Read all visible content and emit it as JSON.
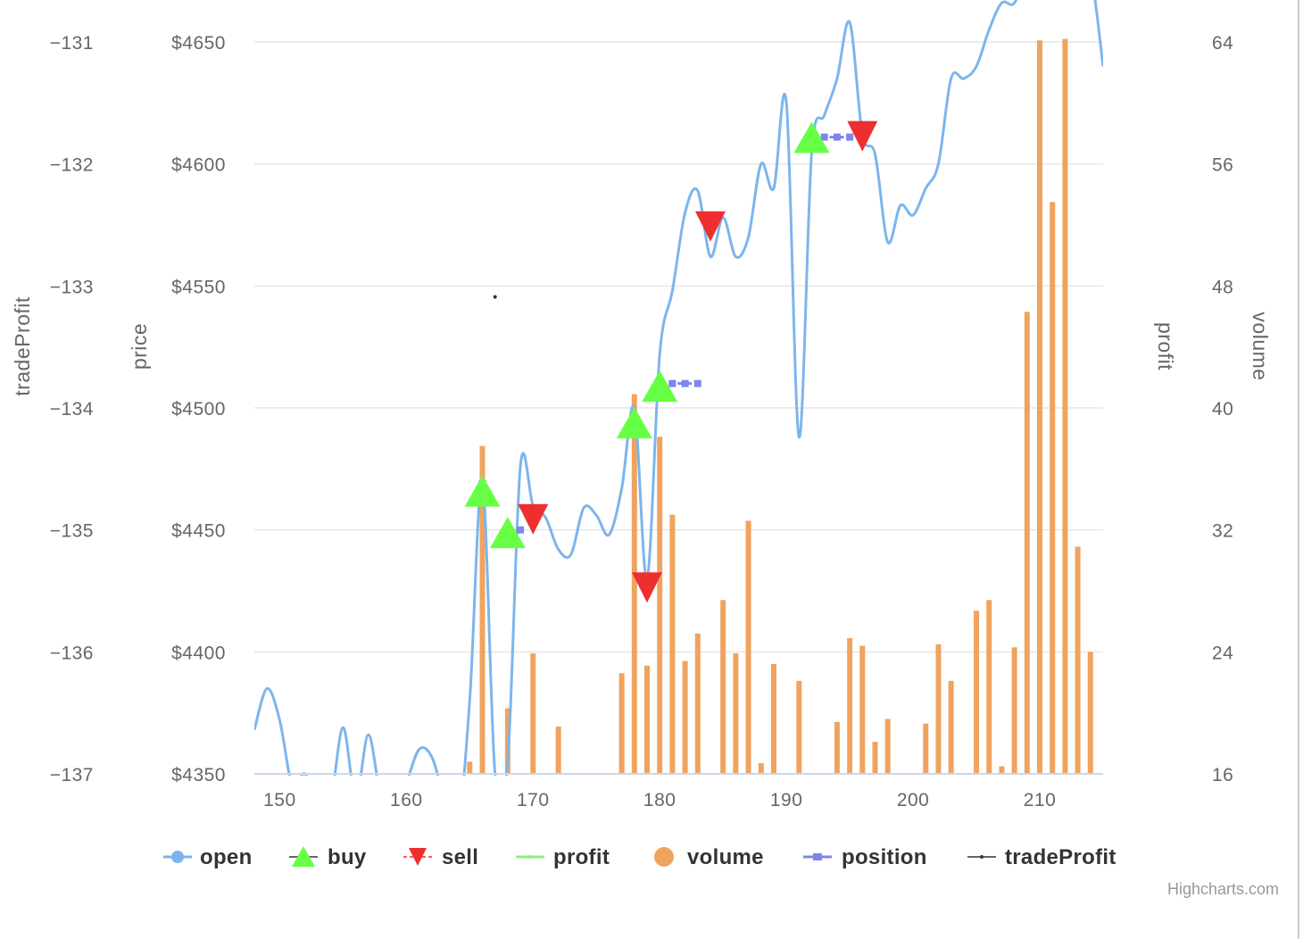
{
  "chart_data": {
    "type": "line",
    "credits": "Highcharts.com",
    "axes": {
      "tradeProfit": {
        "title": "tradeProfit",
        "ticks": [
          "−131",
          "−132",
          "−133",
          "−134",
          "−135",
          "−136",
          "−137"
        ],
        "range": [
          -137,
          -131
        ]
      },
      "price": {
        "title": "price",
        "ticks": [
          "$4650",
          "$4600",
          "$4550",
          "$4500",
          "$4450",
          "$4400",
          "$4350"
        ],
        "range": [
          4350,
          4650
        ]
      },
      "profit": {
        "title": "profit"
      },
      "volume": {
        "title": "volume",
        "ticks": [
          "64",
          "56",
          "48",
          "40",
          "32",
          "24",
          "16"
        ],
        "range": [
          16,
          64
        ]
      },
      "x": {
        "ticks": [
          "150",
          "160",
          "170",
          "180",
          "190",
          "200",
          "210"
        ],
        "range": [
          148,
          215
        ]
      }
    },
    "grid": true,
    "legend_position": "bottom",
    "legend": [
      "open",
      "buy",
      "sell",
      "profit",
      "volume",
      "position",
      "tradeProfit"
    ],
    "colors": {
      "open": "#7cb5ec",
      "buy": "#66ff44",
      "sell": "#ee2f2f",
      "profit": "#90ed7d",
      "volume": "#f0a35e",
      "position": "#8085e9",
      "tradeProfit": "#333333"
    },
    "series": [
      {
        "name": "open",
        "x": [
          148,
          149,
          150,
          151,
          152,
          153,
          154,
          155,
          156,
          157,
          158,
          159,
          160,
          161,
          162,
          163,
          164,
          165,
          166,
          167,
          168,
          169,
          170,
          171,
          172,
          173,
          174,
          175,
          176,
          177,
          178,
          179,
          180,
          181,
          182,
          183,
          184,
          185,
          186,
          187,
          188,
          189,
          190,
          191,
          192,
          193,
          194,
          195,
          196,
          197,
          198,
          199,
          200,
          201,
          202,
          203,
          204,
          205,
          206,
          207,
          208,
          209,
          210,
          211,
          212,
          213,
          214,
          215
        ],
        "values": [
          4368,
          4385,
          4372,
          4345,
          4350,
          4335,
          4338,
          4369,
          4340,
          4366,
          4340,
          4332,
          4346,
          4360,
          4357,
          4340,
          4325,
          4380,
          4470,
          4350,
          4355,
          4476,
          4460,
          4455,
          4442,
          4440,
          4459,
          4456,
          4448,
          4467,
          4500,
          4430,
          4522,
          4548,
          4580,
          4589,
          4562,
          4578,
          4562,
          4570,
          4600,
          4590,
          4625,
          4488,
          4605,
          4620,
          4635,
          4658,
          4612,
          4604,
          4568,
          4583,
          4579,
          4590,
          4600,
          4635,
          4635,
          4640,
          4655,
          4666,
          4666,
          4680,
          4700,
          4720,
          4700,
          4690,
          4680,
          4640
        ]
      },
      {
        "name": "buy",
        "x": [
          166,
          168,
          178,
          180,
          192
        ],
        "values": [
          4465,
          4448,
          4493,
          4508,
          4610
        ]
      },
      {
        "name": "sell",
        "x": [
          170,
          179,
          184,
          196
        ],
        "values": [
          4454,
          4426,
          4574,
          4611
        ]
      },
      {
        "name": "profit",
        "x": [],
        "values": []
      },
      {
        "name": "volume",
        "x": [
          165,
          166,
          168,
          170,
          172,
          177,
          178,
          179,
          180,
          181,
          182,
          183,
          185,
          186,
          187,
          188,
          189,
          191,
          194,
          195,
          196,
          197,
          198,
          201,
          202,
          203,
          205,
          206,
          207,
          208,
          209,
          210,
          211,
          212,
          213,
          214
        ],
        "values": [
          16.8,
          37.5,
          20.3,
          23.9,
          19.1,
          22.6,
          40.9,
          23.1,
          38.1,
          33.0,
          23.4,
          25.2,
          27.4,
          23.9,
          32.6,
          16.7,
          23.2,
          22.1,
          19.4,
          24.9,
          24.4,
          18.1,
          19.6,
          19.3,
          24.5,
          22.1,
          26.7,
          27.4,
          16.5,
          24.3,
          46.3,
          64.1,
          53.5,
          64.2,
          30.9,
          24.0
        ]
      },
      {
        "name": "position",
        "x": [
          166,
          168,
          169,
          178,
          180,
          181,
          182,
          183,
          192,
          193,
          194,
          195
        ],
        "values": [
          4469,
          4450,
          4450,
          4495,
          4510,
          4510,
          4510,
          4510,
          4611,
          4611,
          4611,
          4611
        ]
      },
      {
        "name": "tradeProfit",
        "x": [
          167
        ],
        "values": [
          -133.09
        ]
      }
    ]
  }
}
